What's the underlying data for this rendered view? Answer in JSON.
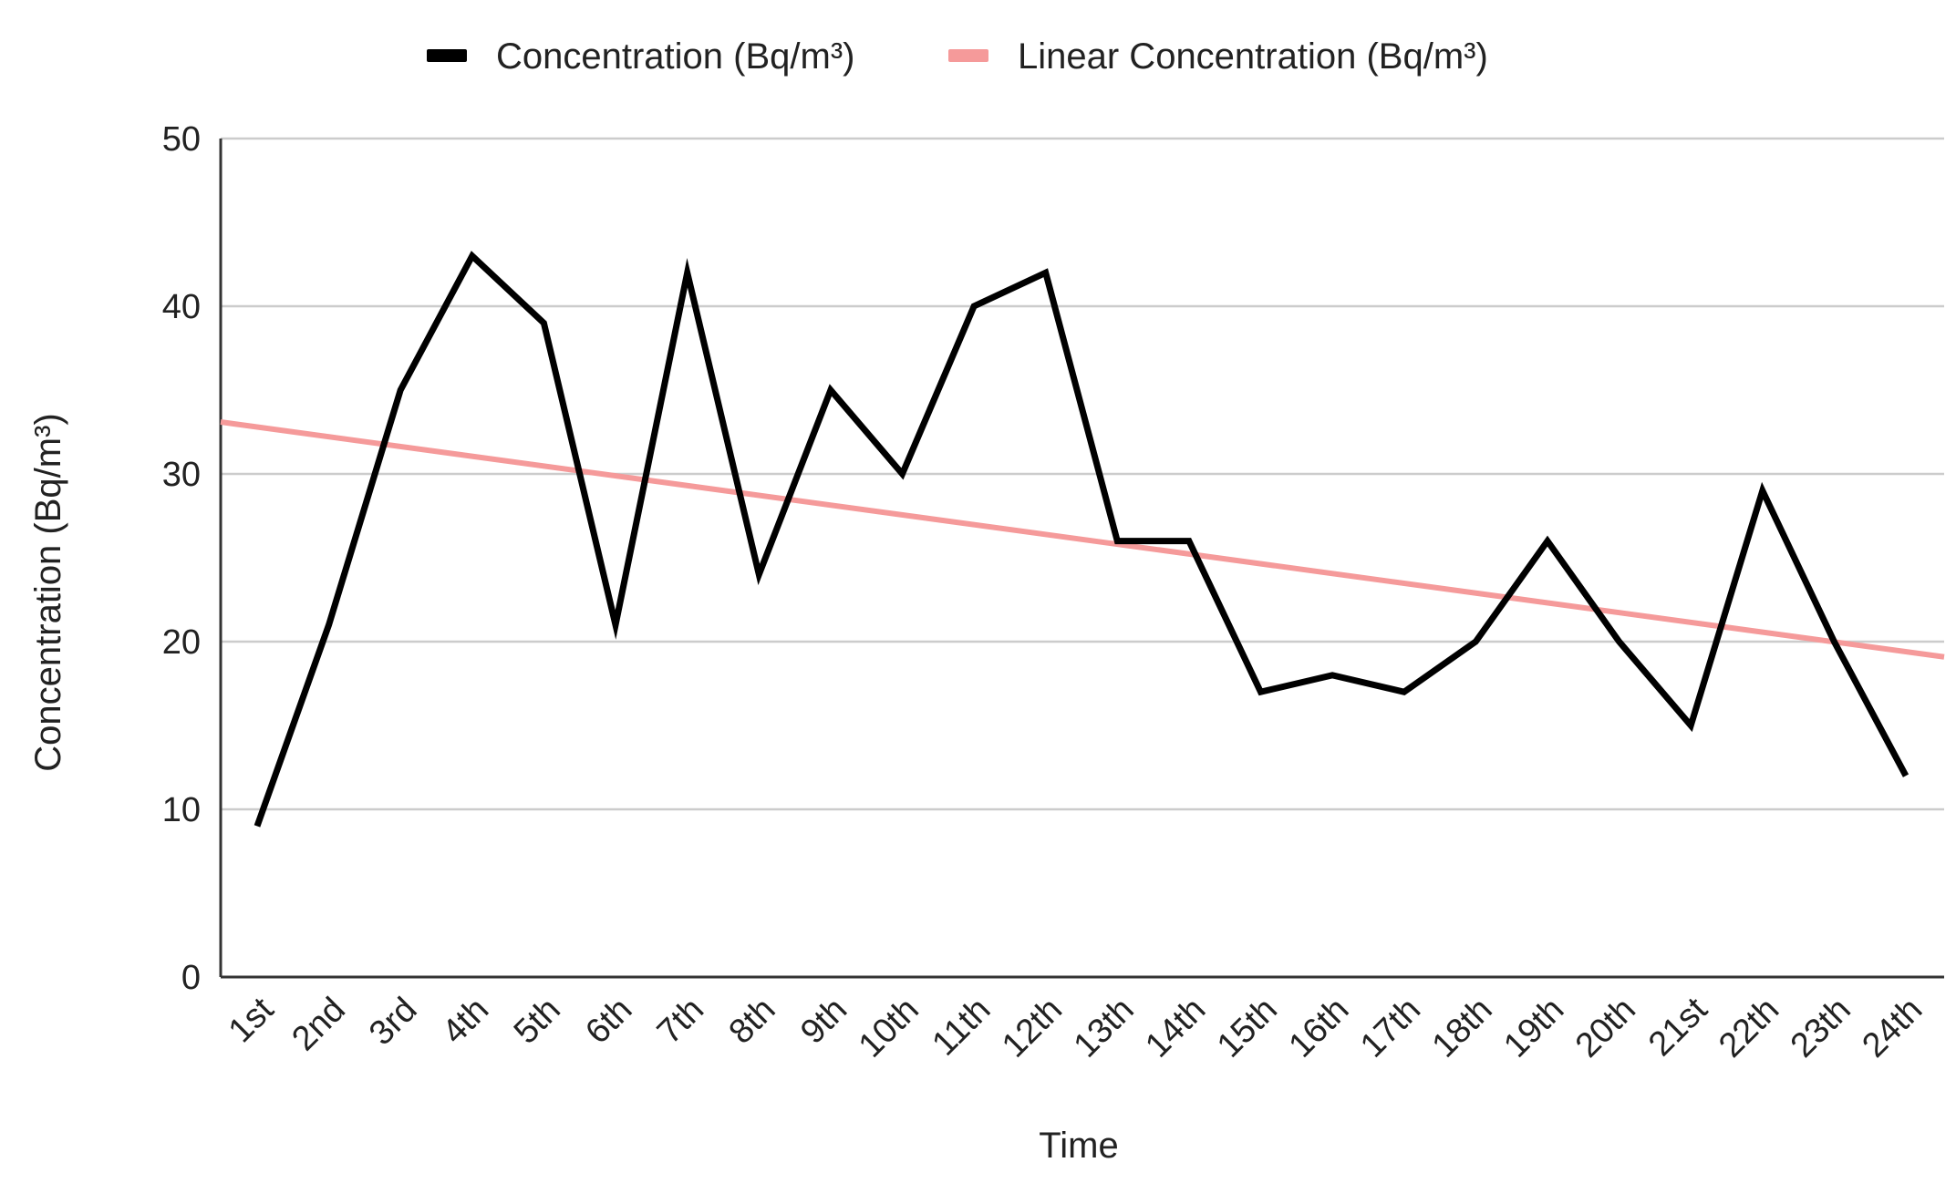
{
  "chart_data": {
    "type": "line",
    "title": "",
    "xlabel": "Time",
    "ylabel": "Concentration (Bq/m³)",
    "ylim": [
      0,
      50
    ],
    "yticks": [
      "0",
      "10",
      "20",
      "30",
      "40",
      "50"
    ],
    "grid": true,
    "legend_position": "top-center",
    "categories": [
      "1st",
      "2nd",
      "3rd",
      "4th",
      "5th",
      "6th",
      "7th",
      "8th",
      "9th",
      "10th",
      "11th",
      "12th",
      "13th",
      "14th",
      "15th",
      "16th",
      "17th",
      "18th",
      "19th",
      "20th",
      "21st",
      "22th",
      "23th",
      "24th"
    ],
    "series": [
      {
        "name": "Concentration (Bq/m³)",
        "color": "#000000",
        "values": [
          9,
          21,
          35,
          43,
          39,
          21,
          42,
          24,
          35,
          30,
          40,
          42,
          26,
          26,
          17,
          18,
          17,
          20,
          26,
          20,
          15,
          29,
          20,
          12
        ]
      },
      {
        "name": "Linear Concentration (Bq/m³)",
        "color": "#f59a9a",
        "trend_start": 32.8,
        "trend_end": 19.4
      }
    ]
  }
}
